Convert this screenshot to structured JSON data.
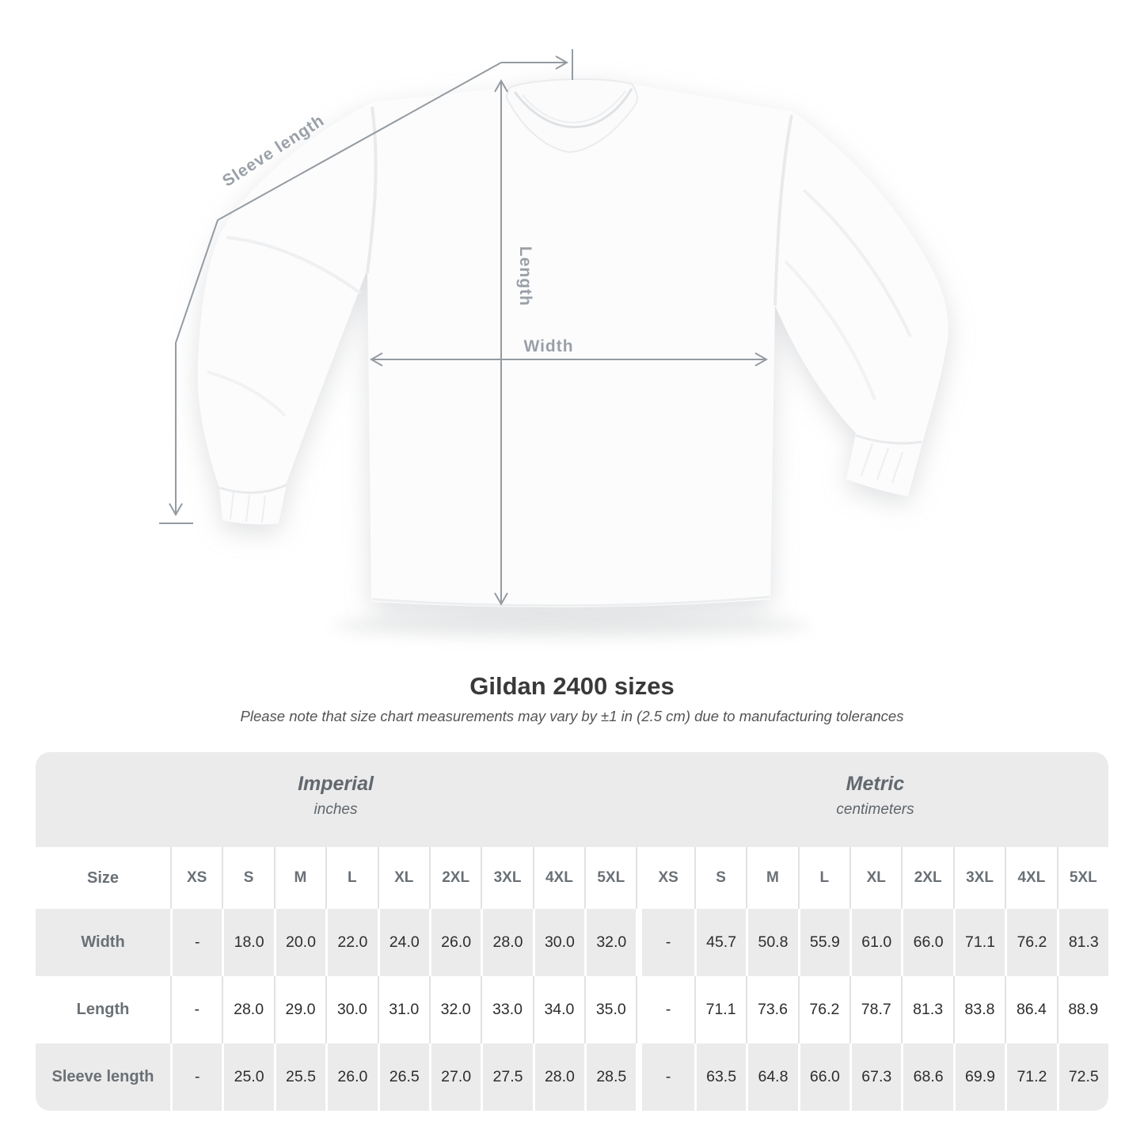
{
  "diagram": {
    "sleeve_length_label": "Sleeve length",
    "length_label": "Length",
    "width_label": "Width",
    "annotation_color": "#949ba2"
  },
  "chart_data": {
    "type": "table",
    "title": "Gildan 2400 sizes",
    "note": "Please note that size chart measurements may vary by ±1 in (2.5 cm) due to manufacturing tolerances",
    "size_header": "Size",
    "sizes": [
      "XS",
      "S",
      "M",
      "L",
      "XL",
      "2XL",
      "3XL",
      "4XL",
      "5XL"
    ],
    "groups": [
      {
        "label": "Imperial",
        "unit": "inches"
      },
      {
        "label": "Metric",
        "unit": "centimeters"
      }
    ],
    "rows": [
      {
        "label": "Width",
        "imperial": [
          "-",
          "18.0",
          "20.0",
          "22.0",
          "24.0",
          "26.0",
          "28.0",
          "30.0",
          "32.0"
        ],
        "metric": [
          "-",
          "45.7",
          "50.8",
          "55.9",
          "61.0",
          "66.0",
          "71.1",
          "76.2",
          "81.3"
        ]
      },
      {
        "label": "Length",
        "imperial": [
          "-",
          "28.0",
          "29.0",
          "30.0",
          "31.0",
          "32.0",
          "33.0",
          "34.0",
          "35.0"
        ],
        "metric": [
          "-",
          "71.1",
          "73.6",
          "76.2",
          "78.7",
          "81.3",
          "83.8",
          "86.4",
          "88.9"
        ]
      },
      {
        "label": "Sleeve length",
        "imperial": [
          "-",
          "25.0",
          "25.5",
          "26.0",
          "26.5",
          "27.0",
          "27.5",
          "28.0",
          "28.5"
        ],
        "metric": [
          "-",
          "63.5",
          "64.8",
          "66.0",
          "67.3",
          "68.6",
          "69.9",
          "71.2",
          "72.5"
        ]
      }
    ]
  },
  "colors": {
    "table_background": "#ebebeb",
    "white_row": "#ffffff",
    "header_text": "#6a7076",
    "value_text": "#2d2d2d",
    "title_text": "#393939",
    "annotation": "#949ba2"
  }
}
